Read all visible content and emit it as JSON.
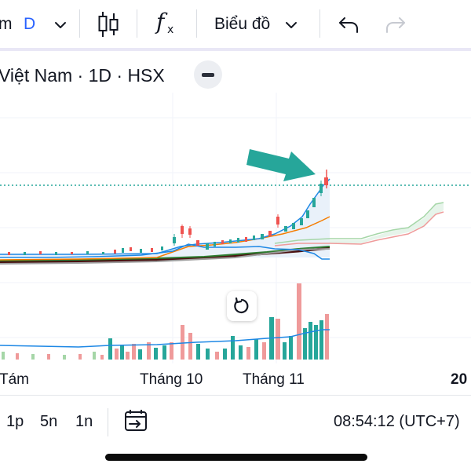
{
  "toolbar": {
    "interval_prefix": "m",
    "interval_value": "D",
    "chart_menu_label": "Biểu đồ",
    "fx_label": "f",
    "fx_sub": "x"
  },
  "symbol_title": "Việt Nam · 1D · HSX",
  "time_axis": {
    "labels": [
      "Tám",
      "Tháng 10",
      "Tháng 11",
      "20"
    ]
  },
  "bottom_bar": {
    "ranges": [
      "1p",
      "5n",
      "1n"
    ],
    "clock": "08:54:12 (UTC+7)"
  },
  "colors": {
    "accent_blue": "#2962ff",
    "up": "#26a69a",
    "down": "#ef5350",
    "annotation_arrow": "#26a69a"
  },
  "icons": {
    "chart_type": "candlestick-icon",
    "indicators": "fx-icon",
    "undo": "undo-icon",
    "redo": "redo-icon",
    "reset": "reset-icon",
    "goto_date": "goto-date-icon"
  }
}
